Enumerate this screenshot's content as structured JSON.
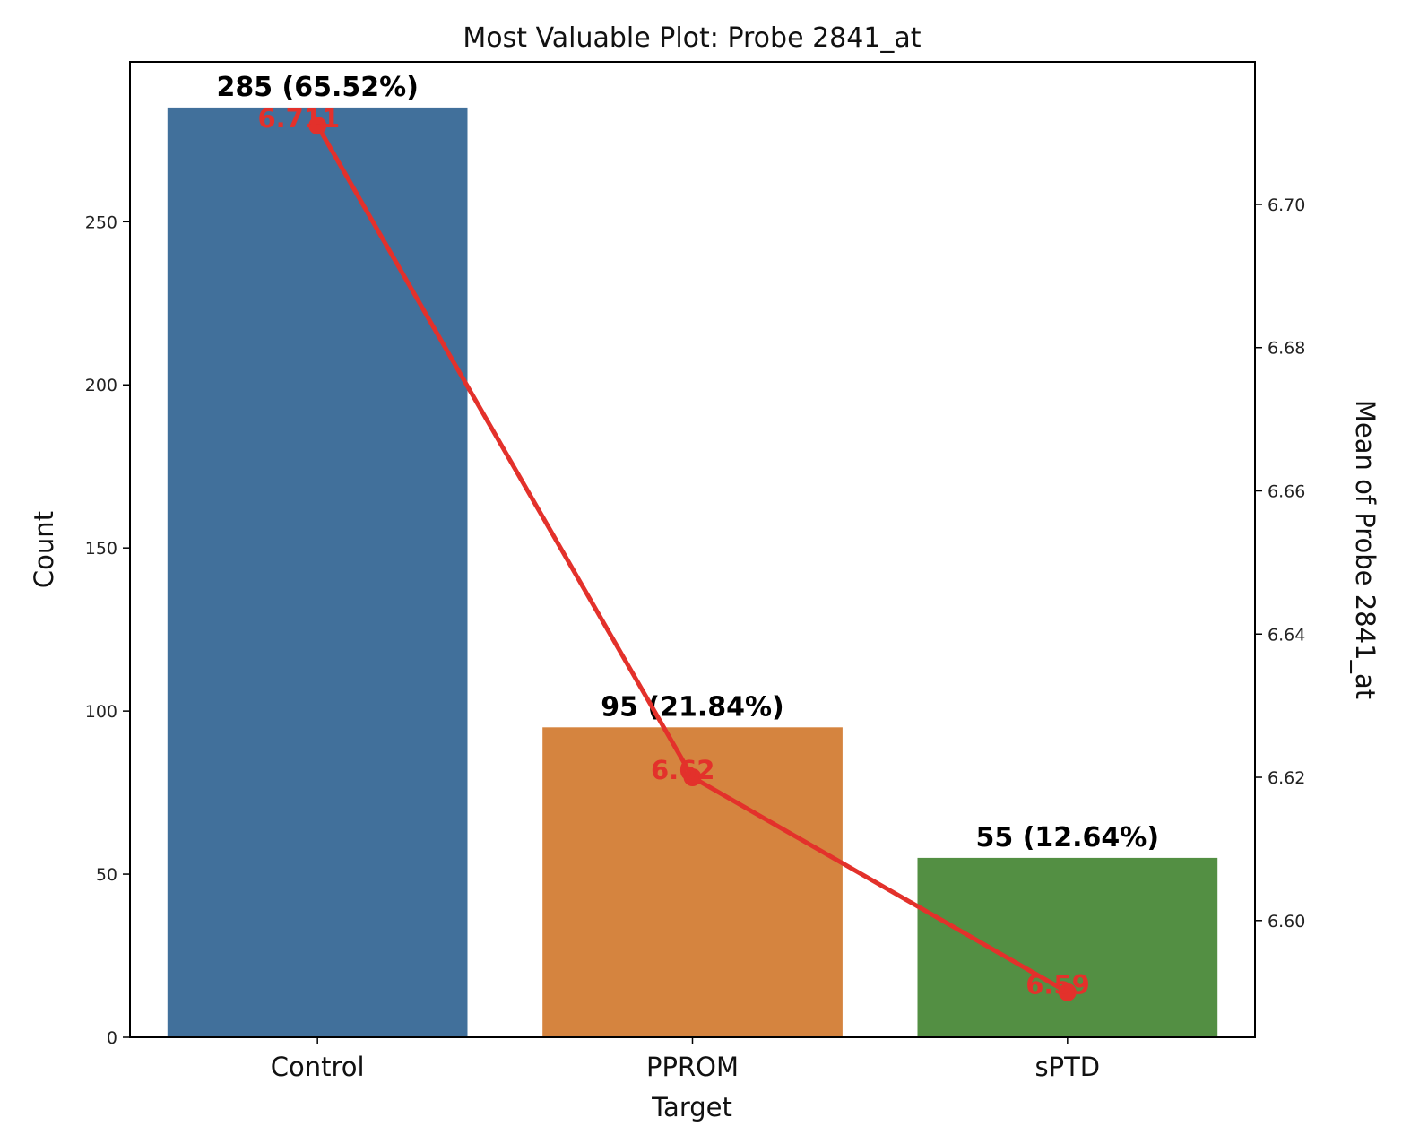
{
  "chart_data": {
    "type": "bar",
    "title": "Most Valuable Plot: Probe 2841_at",
    "xlabel": "Target",
    "ylabel": "Count",
    "y2label": "Mean of Probe 2841_at",
    "categories": [
      "Control",
      "PPROM",
      "sPTD"
    ],
    "values": [
      285,
      95,
      55
    ],
    "bar_labels": [
      "285 (65.52%)",
      "95 (21.84%)",
      "55 (12.64%)"
    ],
    "bar_colors": [
      "#41709b",
      "#d5843f",
      "#538f43"
    ],
    "ylim": [
      0,
      299
    ],
    "yticks": [
      0,
      50,
      100,
      150,
      200,
      250
    ],
    "line_series": {
      "type": "line",
      "axis": "right",
      "values": [
        6.711,
        6.62,
        6.59
      ],
      "point_labels": [
        "6.711",
        "6.62",
        "6.59"
      ],
      "color": "#e3312b"
    },
    "y2lim": [
      6.5837,
      6.7199
    ],
    "y2ticks": [
      "6.60",
      "6.62",
      "6.64",
      "6.66",
      "6.68",
      "6.70"
    ],
    "grid": false
  }
}
